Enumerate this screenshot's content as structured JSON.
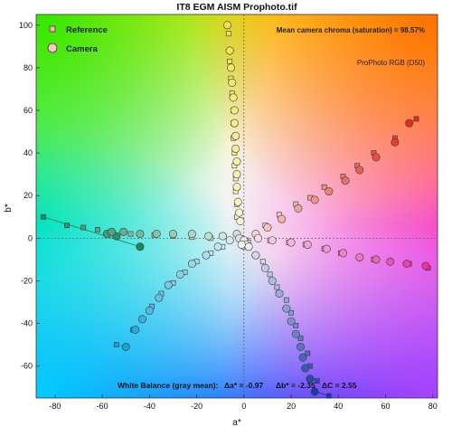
{
  "chart_data": {
    "type": "scatter",
    "title": "IT8 EGM AISM Prophoto.tif",
    "xlabel": "a*",
    "ylabel": "b*",
    "xlim": [
      -88,
      82
    ],
    "ylim": [
      -75,
      105
    ],
    "xticks": [
      -80,
      -60,
      -40,
      -20,
      0,
      20,
      40,
      60,
      80
    ],
    "yticks": [
      -60,
      -40,
      -20,
      0,
      20,
      40,
      60,
      80,
      100
    ],
    "grid": false,
    "background": "a*b* color-plane gradient",
    "legend": {
      "position": "top-left",
      "entries": [
        {
          "name": "Reference",
          "marker": "square"
        },
        {
          "name": "Camera",
          "marker": "circle"
        }
      ]
    },
    "annotations": {
      "chroma": "Mean camera chroma (saturation) = 98.57%",
      "colorspace": "ProPhoto RGB (D50)",
      "wb_label": "White Balance (gray mean):",
      "wb_da": "Δa* = -0.97",
      "wb_db": "Δb* = -2.35",
      "wb_dc": "ΔC = 2.55"
    },
    "series": [
      {
        "name": "Yellow",
        "color": "#f2e24a",
        "ref": [
          [
            -6.5,
            96
          ],
          [
            -6,
            83
          ],
          [
            -5.5,
            75
          ],
          [
            -5,
            68
          ],
          [
            -4.5,
            60
          ],
          [
            -4.5,
            54
          ],
          [
            -4.5,
            47
          ],
          [
            -4,
            40
          ],
          [
            -4,
            34
          ],
          [
            -3.5,
            28
          ],
          [
            -3.5,
            22
          ],
          [
            -3,
            16
          ],
          [
            -3,
            10
          ]
        ],
        "cam": [
          [
            -7,
            100
          ],
          [
            -6,
            88
          ],
          [
            -5.5,
            80
          ],
          [
            -5,
            73
          ],
          [
            -4.5,
            66
          ],
          [
            -4,
            60
          ],
          [
            -4,
            54
          ],
          [
            -3.5,
            48
          ],
          [
            -3.5,
            42
          ],
          [
            -3,
            36
          ],
          [
            -3,
            30
          ],
          [
            -3,
            24
          ],
          [
            -2.5,
            17
          ],
          [
            -2,
            12
          ],
          [
            -1.5,
            8
          ]
        ]
      },
      {
        "name": "Red",
        "color": "#e0301c",
        "ref": [
          [
            73,
            56
          ],
          [
            64,
            47
          ],
          [
            55,
            40
          ],
          [
            48,
            34
          ],
          [
            42,
            29
          ],
          [
            34,
            24
          ],
          [
            28,
            19
          ],
          [
            22,
            16
          ],
          [
            15,
            11
          ],
          [
            9,
            6
          ]
        ],
        "cam": [
          [
            70,
            54
          ],
          [
            64,
            45
          ],
          [
            56,
            38
          ],
          [
            49,
            32
          ],
          [
            43,
            27
          ],
          [
            36,
            22
          ],
          [
            30,
            18
          ],
          [
            23,
            14
          ],
          [
            16,
            9
          ],
          [
            10,
            5
          ],
          [
            5,
            2
          ]
        ]
      },
      {
        "name": "Magenta",
        "color": "#e8329e",
        "ref": [
          [
            78,
            -14
          ],
          [
            70,
            -12
          ],
          [
            62,
            -11
          ],
          [
            55,
            -10
          ],
          [
            49,
            -9
          ],
          [
            41,
            -7
          ],
          [
            34,
            -5
          ],
          [
            26,
            -3
          ],
          [
            19,
            -2
          ],
          [
            11,
            -1
          ]
        ],
        "cam": [
          [
            77,
            -13
          ],
          [
            69,
            -12
          ],
          [
            62,
            -11
          ],
          [
            56,
            -10
          ],
          [
            49,
            -9
          ],
          [
            42,
            -7
          ],
          [
            35,
            -5
          ],
          [
            27,
            -3
          ],
          [
            20,
            -2
          ],
          [
            12,
            -1
          ],
          [
            6,
            0
          ]
        ]
      },
      {
        "name": "Blue",
        "color": "#1a3aa8",
        "ref": [
          [
            36,
            -74
          ],
          [
            31,
            -67
          ],
          [
            28,
            -60
          ],
          [
            27,
            -54
          ],
          [
            24,
            -47
          ],
          [
            22,
            -41
          ],
          [
            20,
            -35
          ],
          [
            18,
            -29
          ],
          [
            14,
            -23
          ],
          [
            11,
            -17
          ],
          [
            8,
            -11
          ]
        ],
        "cam": [
          [
            30,
            -72
          ],
          [
            28,
            -66
          ],
          [
            26,
            -61
          ],
          [
            25,
            -56
          ],
          [
            24,
            -51
          ],
          [
            22,
            -45
          ],
          [
            20,
            -39
          ],
          [
            18,
            -33
          ],
          [
            15,
            -26
          ],
          [
            12,
            -20
          ],
          [
            9,
            -14
          ],
          [
            5,
            -8
          ]
        ]
      },
      {
        "name": "Cyan",
        "color": "#1ca0d8",
        "ref": [
          [
            -54,
            -50
          ],
          [
            -47,
            -43
          ],
          [
            -43,
            -38
          ],
          [
            -39,
            -32
          ],
          [
            -35,
            -26
          ],
          [
            -30,
            -21
          ],
          [
            -25,
            -16
          ],
          [
            -20,
            -11
          ],
          [
            -14,
            -7
          ],
          [
            -9,
            -4
          ]
        ],
        "cam": [
          [
            -50,
            -51
          ],
          [
            -46,
            -43
          ],
          [
            -43,
            -38
          ],
          [
            -40,
            -34
          ],
          [
            -36,
            -28
          ],
          [
            -32,
            -22
          ],
          [
            -27,
            -17
          ],
          [
            -22,
            -12
          ],
          [
            -16,
            -8
          ],
          [
            -11,
            -4
          ],
          [
            -6,
            -1
          ]
        ]
      },
      {
        "name": "Green",
        "color": "#1a8a5a",
        "ref": [
          [
            -85,
            10
          ],
          [
            -75,
            6
          ],
          [
            -68,
            5
          ],
          [
            -62,
            4
          ],
          [
            -56,
            3
          ],
          [
            -48,
            2
          ],
          [
            -38,
            1.5
          ],
          [
            -30,
            1
          ],
          [
            -22,
            0.5
          ],
          [
            -14,
            0
          ]
        ],
        "cam": [
          [
            -44,
            -4
          ],
          [
            -54,
            1
          ],
          [
            -58,
            2
          ],
          [
            -56,
            3
          ],
          [
            -51,
            3
          ],
          [
            -44,
            2
          ],
          [
            -37,
            2
          ],
          [
            -30,
            2
          ],
          [
            -22,
            2
          ],
          [
            -15,
            1
          ],
          [
            -9,
            1
          ]
        ]
      },
      {
        "name": "Neutral",
        "color": "#dcdcdc",
        "ref": [
          [
            -3,
            2
          ],
          [
            -1,
            0
          ],
          [
            1,
            -1
          ],
          [
            2,
            -2
          ],
          [
            0,
            -4
          ]
        ],
        "cam": [
          [
            -3,
            2
          ],
          [
            -2,
            0
          ],
          [
            0,
            -1
          ],
          [
            1,
            -3
          ],
          [
            2,
            -4
          ],
          [
            -1,
            -3
          ]
        ]
      }
    ]
  }
}
